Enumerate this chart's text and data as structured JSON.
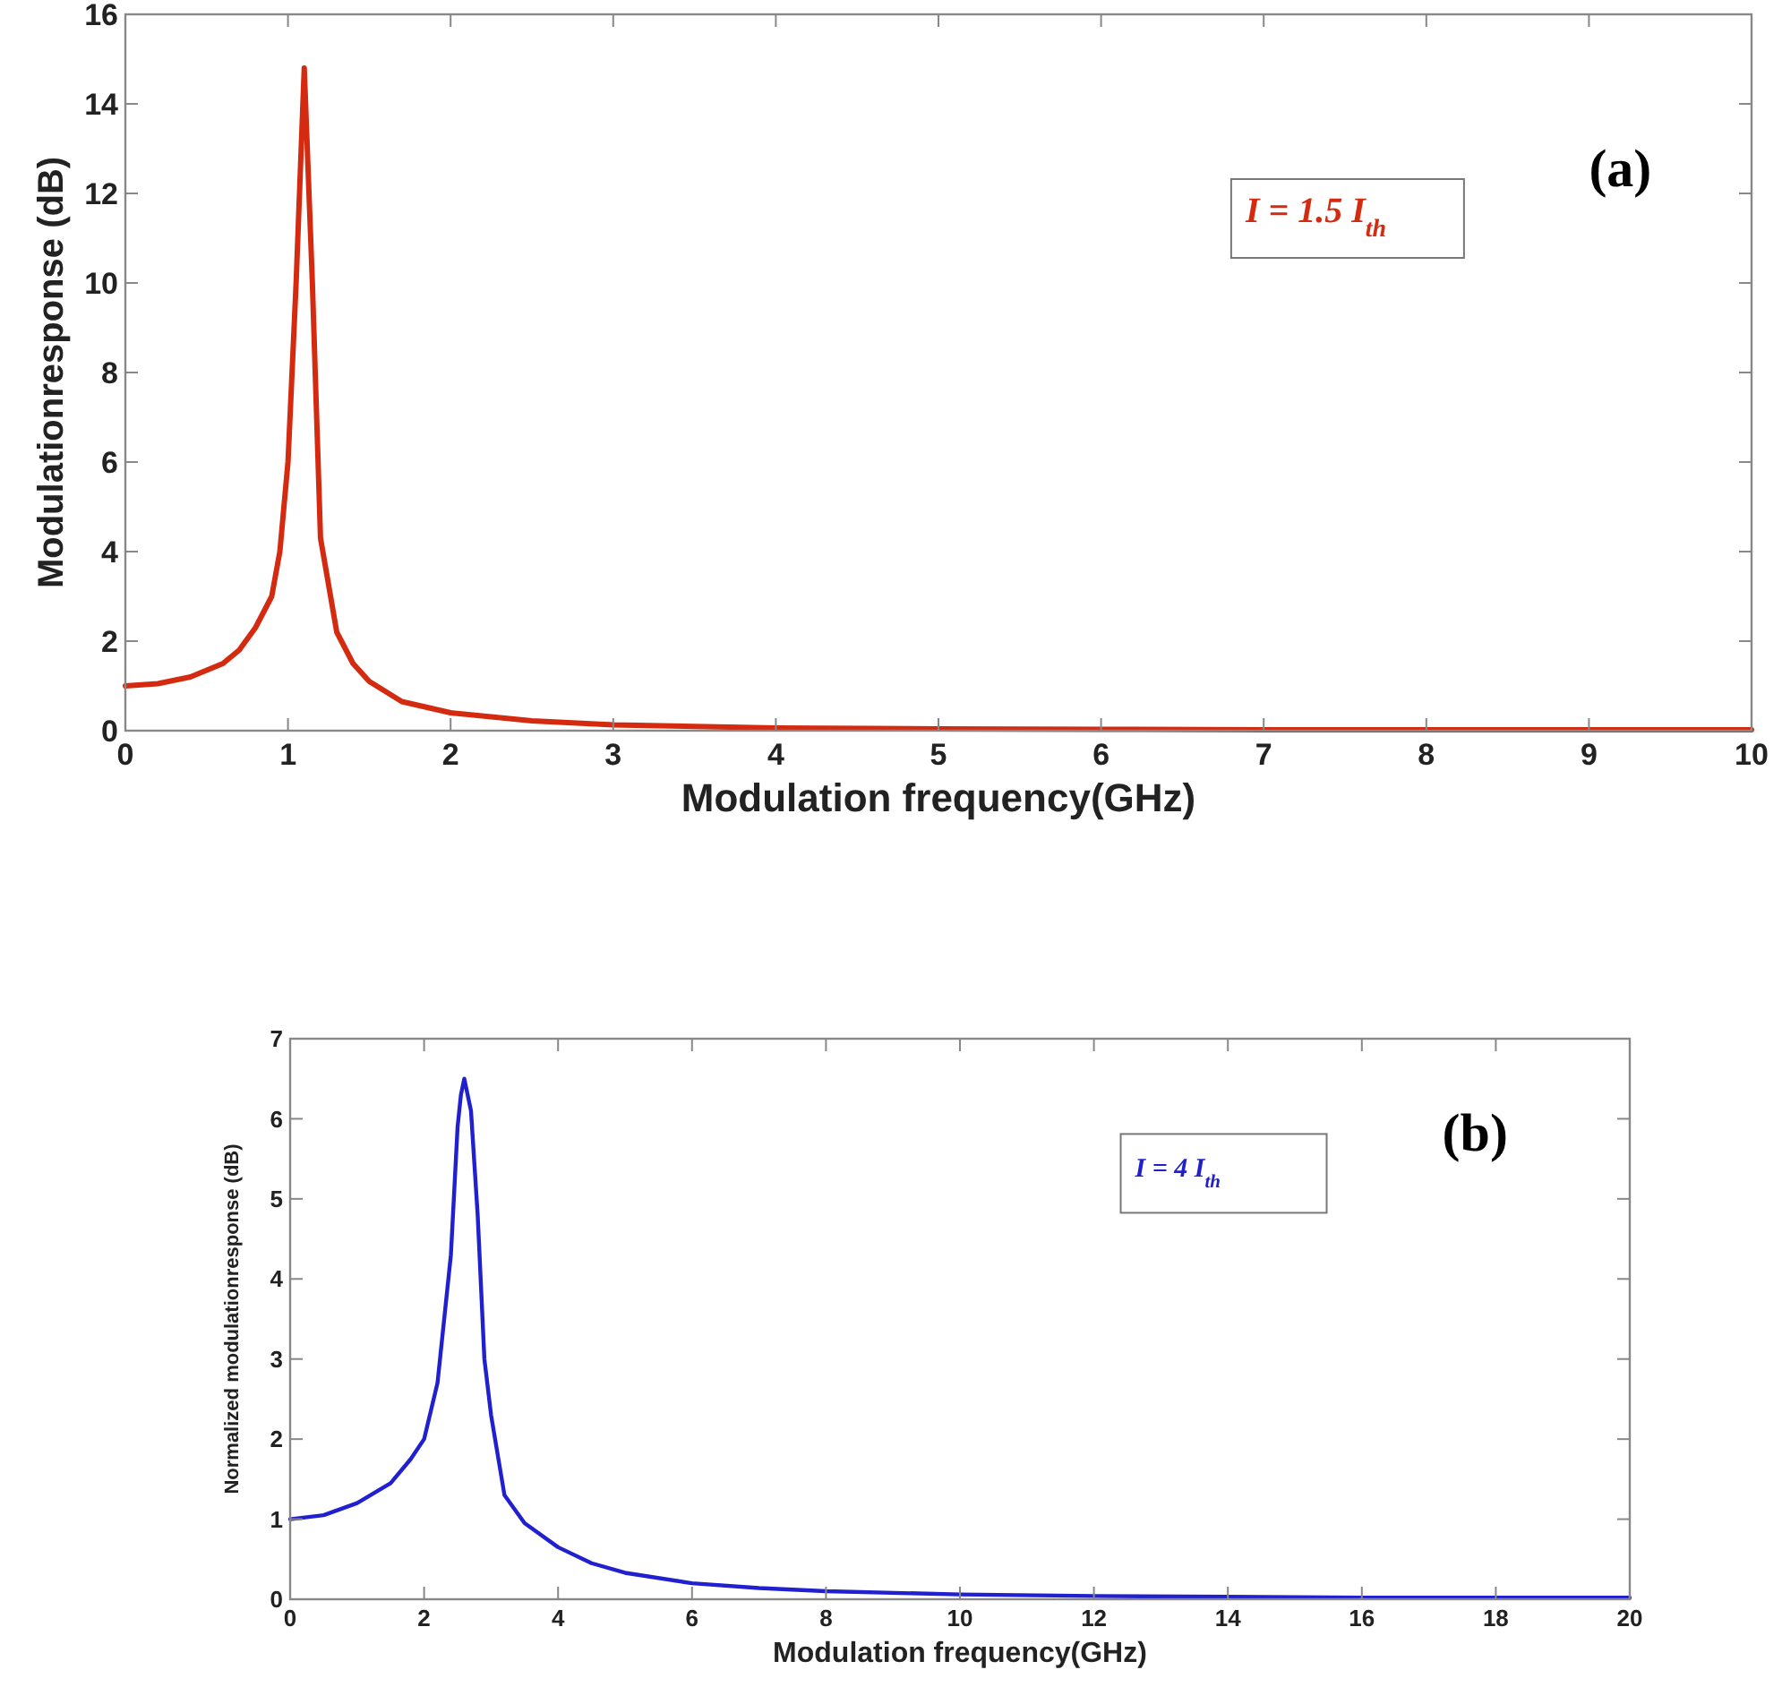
{
  "chart_data": [
    {
      "type": "line",
      "xlabel": "Modulation frequency(GHz)",
      "ylabel": "Modulationresponse (dB)",
      "annotations": [
        "(a)"
      ],
      "xlim": [
        0,
        10
      ],
      "ylim": [
        0,
        16
      ],
      "xticks": [
        0,
        1,
        2,
        3,
        4,
        5,
        6,
        7,
        8,
        9,
        10
      ],
      "yticks": [
        0,
        2,
        4,
        6,
        8,
        10,
        12,
        14,
        16
      ],
      "grid": false,
      "legend": "top right",
      "series": [
        {
          "name": "I = 1.5 I$_{th}$",
          "color": "#d42a10",
          "x": [
            0,
            0.2,
            0.4,
            0.6,
            0.7,
            0.8,
            0.9,
            0.95,
            1.0,
            1.05,
            1.1,
            1.15,
            1.2,
            1.3,
            1.4,
            1.5,
            1.7,
            2.0,
            2.5,
            3,
            4,
            5,
            6,
            7,
            8,
            9,
            10
          ],
          "values": [
            1.0,
            1.05,
            1.2,
            1.5,
            1.8,
            2.3,
            3.0,
            4.0,
            6.0,
            10,
            14.8,
            10,
            4.3,
            2.2,
            1.5,
            1.1,
            0.65,
            0.4,
            0.22,
            0.13,
            0.06,
            0.04,
            0.03,
            0.02,
            0.02,
            0.02,
            0.02
          ]
        }
      ]
    },
    {
      "type": "line",
      "xlabel": "Modulation frequency(GHz)",
      "ylabel": "Normalized modulationresponse (dB)",
      "annotations": [
        "(b)"
      ],
      "xlim": [
        0,
        20
      ],
      "ylim": [
        0,
        7
      ],
      "xticks": [
        0,
        2,
        4,
        6,
        8,
        10,
        12,
        14,
        16,
        18,
        20
      ],
      "yticks": [
        0,
        1,
        2,
        3,
        4,
        5,
        6,
        7
      ],
      "grid": false,
      "legend": "top right",
      "series": [
        {
          "name": "I = 4 I$_{th}$",
          "color": "#2020d0",
          "x": [
            0,
            0.5,
            1,
            1.5,
            1.8,
            2.0,
            2.2,
            2.4,
            2.5,
            2.55,
            2.6,
            2.7,
            2.8,
            2.9,
            3.0,
            3.2,
            3.5,
            4,
            4.5,
            5,
            6,
            7,
            8,
            10,
            12,
            14,
            16,
            18,
            20
          ],
          "values": [
            1.0,
            1.05,
            1.2,
            1.45,
            1.75,
            2.0,
            2.7,
            4.3,
            5.9,
            6.3,
            6.5,
            6.1,
            4.8,
            3.0,
            2.3,
            1.3,
            0.95,
            0.65,
            0.45,
            0.33,
            0.2,
            0.14,
            0.1,
            0.06,
            0.04,
            0.03,
            0.02,
            0.02,
            0.02
          ]
        }
      ]
    }
  ]
}
